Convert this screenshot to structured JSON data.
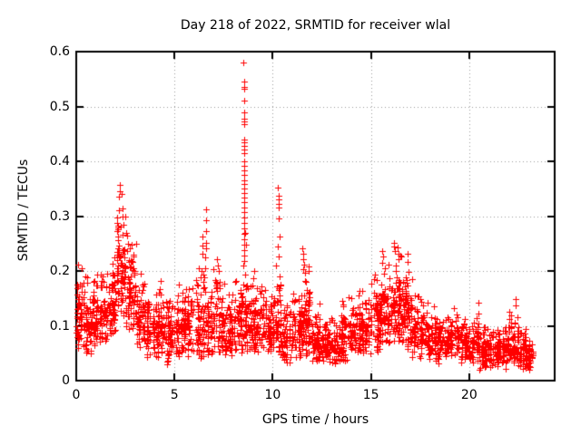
{
  "chart_data": {
    "type": "scatter",
    "title": "Day 218 of 2022, SRMTID for receiver wlal",
    "xlabel": "GPS time / hours",
    "ylabel": "SRMTID / TECUs",
    "xlim": [
      0,
      24.35
    ],
    "ylim": [
      0,
      0.6
    ],
    "xticks": [
      {
        "v": 0,
        "label": "0"
      },
      {
        "v": 5,
        "label": "5"
      },
      {
        "v": 10,
        "label": "10"
      },
      {
        "v": 15,
        "label": "15"
      },
      {
        "v": 20,
        "label": "20"
      }
    ],
    "yticks": [
      {
        "v": 0,
        "label": "0"
      },
      {
        "v": 0.1,
        "label": "0.1"
      },
      {
        "v": 0.2,
        "label": "0.2"
      },
      {
        "v": 0.3,
        "label": "0.3"
      },
      {
        "v": 0.4,
        "label": "0.4"
      },
      {
        "v": 0.5,
        "label": "0.5"
      },
      {
        "v": 0.6,
        "label": "0.6"
      }
    ],
    "grid": true,
    "legend": "none",
    "marker": {
      "shape": "plus",
      "size": 7,
      "color": "#ff0000"
    },
    "colors": {
      "background": "#ffffff",
      "border": "#000000",
      "grid": "#9a9a9a",
      "text": "#000000"
    },
    "x_data_range": [
      0,
      23.3
    ],
    "envelope_bins_comment": "each bin: [x_start_hours, x_end_hours, y_min_TECUs, y_max_TECUs, point_count] describing the dense scatter band",
    "envelope_bins": [
      [
        0.0,
        0.5,
        0.05,
        0.21,
        70
      ],
      [
        0.5,
        1.0,
        0.04,
        0.2,
        70
      ],
      [
        1.0,
        1.5,
        0.07,
        0.2,
        65
      ],
      [
        1.5,
        2.0,
        0.08,
        0.22,
        65
      ],
      [
        2.0,
        2.5,
        0.11,
        0.33,
        80
      ],
      [
        2.5,
        3.0,
        0.09,
        0.27,
        70
      ],
      [
        3.0,
        3.5,
        0.06,
        0.19,
        60
      ],
      [
        3.5,
        4.0,
        0.04,
        0.17,
        58
      ],
      [
        4.0,
        4.5,
        0.04,
        0.18,
        60
      ],
      [
        4.5,
        5.0,
        0.03,
        0.16,
        55
      ],
      [
        5.0,
        5.5,
        0.03,
        0.18,
        60
      ],
      [
        5.5,
        6.0,
        0.04,
        0.19,
        58
      ],
      [
        6.0,
        6.5,
        0.04,
        0.22,
        60
      ],
      [
        6.5,
        7.0,
        0.04,
        0.21,
        60
      ],
      [
        7.0,
        7.5,
        0.05,
        0.21,
        62
      ],
      [
        7.5,
        8.0,
        0.03,
        0.17,
        55
      ],
      [
        8.0,
        8.5,
        0.05,
        0.19,
        60
      ],
      [
        8.5,
        9.0,
        0.05,
        0.2,
        65
      ],
      [
        9.0,
        9.5,
        0.04,
        0.18,
        60
      ],
      [
        9.5,
        10.0,
        0.05,
        0.17,
        58
      ],
      [
        10.0,
        10.5,
        0.04,
        0.2,
        60
      ],
      [
        10.5,
        11.0,
        0.03,
        0.15,
        55
      ],
      [
        11.0,
        11.5,
        0.04,
        0.17,
        58
      ],
      [
        11.5,
        12.0,
        0.04,
        0.21,
        70
      ],
      [
        12.0,
        12.5,
        0.03,
        0.13,
        60
      ],
      [
        12.5,
        13.0,
        0.03,
        0.12,
        58
      ],
      [
        13.0,
        13.5,
        0.03,
        0.12,
        55
      ],
      [
        13.5,
        14.0,
        0.03,
        0.15,
        60
      ],
      [
        14.0,
        14.5,
        0.04,
        0.17,
        60
      ],
      [
        14.5,
        15.0,
        0.05,
        0.17,
        60
      ],
      [
        15.0,
        15.5,
        0.05,
        0.2,
        65
      ],
      [
        15.5,
        16.0,
        0.06,
        0.22,
        65
      ],
      [
        16.0,
        16.5,
        0.06,
        0.23,
        72
      ],
      [
        16.5,
        17.0,
        0.05,
        0.21,
        65
      ],
      [
        17.0,
        17.5,
        0.04,
        0.17,
        60
      ],
      [
        17.5,
        18.0,
        0.04,
        0.15,
        58
      ],
      [
        18.0,
        18.5,
        0.03,
        0.13,
        58
      ],
      [
        18.5,
        19.0,
        0.04,
        0.12,
        58
      ],
      [
        19.0,
        19.5,
        0.04,
        0.13,
        55
      ],
      [
        19.5,
        20.0,
        0.03,
        0.12,
        56
      ],
      [
        20.0,
        20.5,
        0.03,
        0.12,
        55
      ],
      [
        20.5,
        21.0,
        0.02,
        0.11,
        55
      ],
      [
        21.0,
        21.5,
        0.02,
        0.1,
        55
      ],
      [
        21.5,
        22.0,
        0.02,
        0.11,
        55
      ],
      [
        22.0,
        22.5,
        0.03,
        0.135,
        60
      ],
      [
        22.5,
        23.0,
        0.02,
        0.1,
        55
      ],
      [
        23.0,
        23.3,
        0.02,
        0.08,
        35
      ]
    ],
    "spike_points_comment": "explicit [x_hours, y_TECUs] points for the tall TID spikes and isolated outliers",
    "spike_points": [
      [
        8.52,
        0.58
      ],
      [
        8.53,
        0.545
      ],
      [
        8.55,
        0.535
      ],
      [
        8.55,
        0.532
      ],
      [
        8.54,
        0.51
      ],
      [
        8.55,
        0.49
      ],
      [
        8.56,
        0.478
      ],
      [
        8.54,
        0.472
      ],
      [
        8.55,
        0.468
      ],
      [
        8.55,
        0.44
      ],
      [
        8.56,
        0.434
      ],
      [
        8.54,
        0.428
      ],
      [
        8.55,
        0.421
      ],
      [
        8.55,
        0.415
      ],
      [
        8.56,
        0.4
      ],
      [
        8.55,
        0.392
      ],
      [
        8.54,
        0.384
      ],
      [
        8.55,
        0.376
      ],
      [
        8.56,
        0.366
      ],
      [
        8.55,
        0.358
      ],
      [
        8.54,
        0.35
      ],
      [
        8.55,
        0.342
      ],
      [
        8.56,
        0.334
      ],
      [
        8.55,
        0.325
      ],
      [
        8.54,
        0.316
      ],
      [
        8.55,
        0.307
      ],
      [
        8.55,
        0.298
      ],
      [
        8.56,
        0.288
      ],
      [
        8.55,
        0.278
      ],
      [
        8.54,
        0.268
      ],
      [
        8.55,
        0.258
      ],
      [
        8.55,
        0.248
      ],
      [
        8.56,
        0.238
      ],
      [
        8.55,
        0.228
      ],
      [
        8.54,
        0.218
      ],
      [
        8.6,
        0.27
      ],
      [
        8.62,
        0.248
      ],
      [
        8.48,
        0.21
      ],
      [
        2.2,
        0.357
      ],
      [
        2.24,
        0.346
      ],
      [
        2.18,
        0.335
      ],
      [
        2.3,
        0.34
      ],
      [
        2.35,
        0.3
      ],
      [
        2.15,
        0.31
      ],
      [
        2.42,
        0.285
      ],
      [
        2.5,
        0.3
      ],
      [
        2.55,
        0.27
      ],
      [
        2.6,
        0.265
      ],
      [
        2.65,
        0.25
      ],
      [
        6.42,
        0.262
      ],
      [
        6.44,
        0.247
      ],
      [
        6.4,
        0.232
      ],
      [
        6.6,
        0.312
      ],
      [
        6.61,
        0.292
      ],
      [
        6.63,
        0.272
      ],
      [
        6.59,
        0.252
      ],
      [
        6.62,
        0.242
      ],
      [
        6.58,
        0.225
      ],
      [
        10.28,
        0.352
      ],
      [
        10.3,
        0.338
      ],
      [
        10.31,
        0.33
      ],
      [
        10.32,
        0.322
      ],
      [
        10.29,
        0.316
      ],
      [
        10.3,
        0.296
      ],
      [
        10.33,
        0.262
      ],
      [
        10.28,
        0.244
      ],
      [
        10.31,
        0.226
      ],
      [
        10.15,
        0.21
      ],
      [
        11.52,
        0.241
      ],
      [
        11.55,
        0.232
      ],
      [
        11.57,
        0.222
      ],
      [
        11.58,
        0.212
      ],
      [
        11.53,
        0.204
      ],
      [
        15.58,
        0.236
      ],
      [
        15.62,
        0.226
      ],
      [
        15.55,
        0.215
      ],
      [
        16.15,
        0.252
      ],
      [
        16.18,
        0.244
      ],
      [
        16.22,
        0.236
      ],
      [
        16.35,
        0.243
      ],
      [
        16.38,
        0.231
      ],
      [
        16.42,
        0.222
      ],
      [
        16.52,
        0.226
      ],
      [
        16.85,
        0.231
      ],
      [
        16.88,
        0.216
      ],
      [
        20.45,
        0.142
      ],
      [
        20.48,
        0.122
      ],
      [
        22.35,
        0.148
      ],
      [
        22.38,
        0.138
      ],
      [
        9.05,
        0.2
      ],
      [
        7.15,
        0.222
      ],
      [
        7.2,
        0.21
      ],
      [
        3.3,
        0.195
      ],
      [
        1.95,
        0.225
      ],
      [
        0.1,
        0.212
      ],
      [
        0.3,
        0.205
      ],
      [
        4.3,
        0.182
      ],
      [
        5.2,
        0.175
      ],
      [
        12.4,
        0.14
      ],
      [
        13.85,
        0.152
      ],
      [
        14.55,
        0.163
      ],
      [
        17.1,
        0.185
      ],
      [
        18.2,
        0.135
      ],
      [
        19.2,
        0.133
      ]
    ]
  }
}
